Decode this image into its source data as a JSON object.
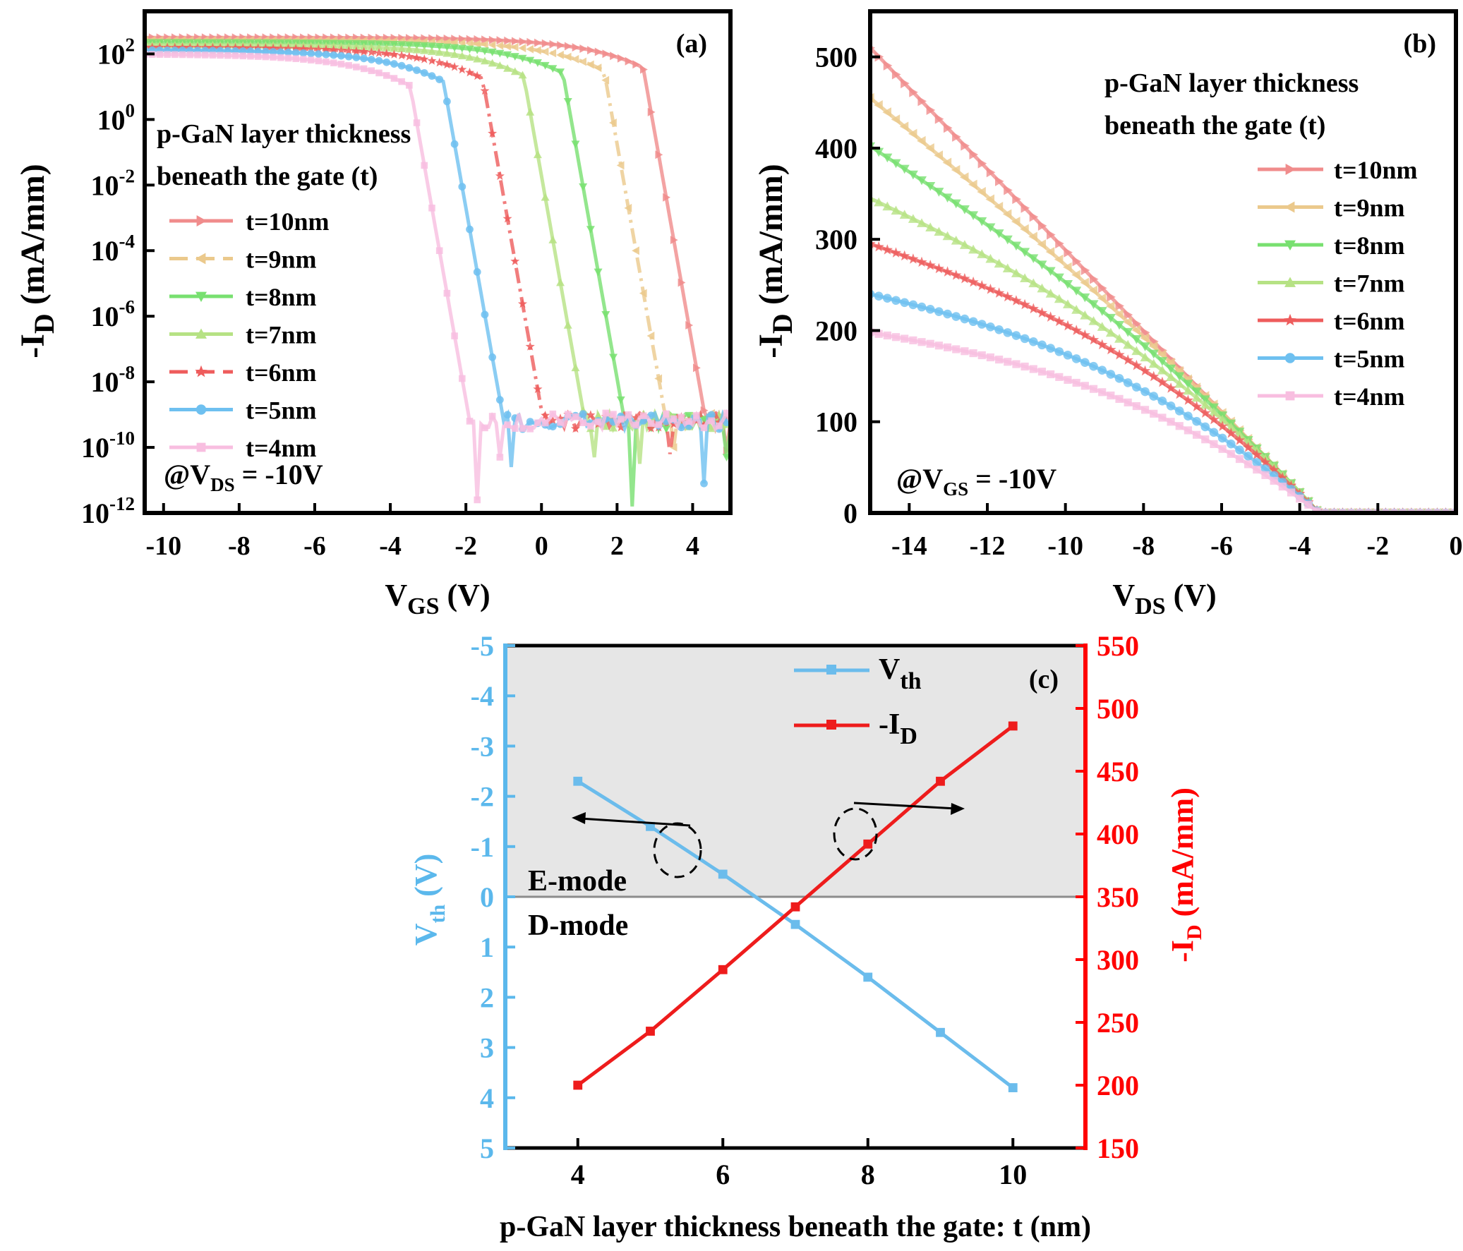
{
  "chart_data": [
    {
      "panel": "(a)",
      "type": "line",
      "yscale": "log",
      "title": "",
      "xlabel_main": "V",
      "xlabel_sub": "GS",
      "xlabel_unit": " (V)",
      "ylabel_main": "-I",
      "ylabel_sub": "D",
      "ylabel_unit": " (mA/mm)",
      "xlim": [
        -10.5,
        5
      ],
      "ylim_exp": [
        -12,
        3.3
      ],
      "xticks": [
        "-10",
        "-8",
        "-6",
        "-4",
        "-2",
        "0",
        "2",
        "4"
      ],
      "xtick_values": [
        -10,
        -8,
        -6,
        -4,
        -2,
        0,
        2,
        4
      ],
      "ytick_exps": [
        "2",
        "0",
        "-2",
        "-4",
        "-6",
        "-8",
        "-10",
        "-12"
      ],
      "ytick_base": "10",
      "legend_title_line1": "p-GaN layer thickness",
      "legend_title_line2": "beneath the gate (t)",
      "condition_prefix": "@V",
      "condition_sub": "DS",
      "condition_value": " = -10V",
      "floor_log": -9.2,
      "series": [
        {
          "name": "t=10nm",
          "color": "#F08C8C",
          "marker": "tri-right",
          "vth": 4.35,
          "on_log": 2.5,
          "dash": false,
          "noise_dips": [
            [
              4.9,
              -10.1
            ]
          ]
        },
        {
          "name": "t=9nm",
          "color": "#EBC98C",
          "marker": "tri-left",
          "vth": 3.3,
          "on_log": 2.42,
          "dash": true,
          "noise_dips": [
            [
              3.5,
              -10.0
            ]
          ]
        },
        {
          "name": "t=8nm",
          "color": "#78E070",
          "marker": "tri-down",
          "vth": 2.2,
          "on_log": 2.35,
          "dash": false,
          "noise_dips": [
            [
              2.4,
              -11.8
            ],
            [
              4.9,
              -10.3
            ]
          ]
        },
        {
          "name": "t=7nm",
          "color": "#B6E284",
          "marker": "tri-up",
          "vth": 1.15,
          "on_log": 2.28,
          "dash": false,
          "noise_dips": [
            [
              1.4,
              -10.3
            ],
            [
              2.6,
              -10.5
            ]
          ]
        },
        {
          "name": "t=6nm",
          "color": "#EE5C5C",
          "marker": "star",
          "vth": 0.05,
          "on_log": 2.2,
          "dash": true,
          "noise_dips": [
            [
              3.4,
              -10.2
            ]
          ]
        },
        {
          "name": "t=5nm",
          "color": "#6EC0F0",
          "marker": "circle",
          "vth": -1.0,
          "on_log": 2.12,
          "dash": false,
          "noise_dips": [
            [
              -0.8,
              -10.6
            ],
            [
              4.3,
              -11.1
            ]
          ]
        },
        {
          "name": "t=4nm",
          "color": "#F8BEE0",
          "marker": "square",
          "vth": -1.9,
          "on_log": 2.0,
          "dash": false,
          "noise_dips": [
            [
              -1.7,
              -11.6
            ],
            [
              -1.1,
              -10.3
            ]
          ]
        }
      ]
    },
    {
      "panel": "(b)",
      "type": "line",
      "title": "",
      "xlabel_main": "V",
      "xlabel_sub": "DS",
      "xlabel_unit": " (V)",
      "ylabel_main": "-I",
      "ylabel_sub": "D",
      "ylabel_unit": " (mA/mm)",
      "xlim": [
        -15,
        0
      ],
      "ylim": [
        0,
        550
      ],
      "xticks": [
        "-14",
        "-12",
        "-10",
        "-8",
        "-6",
        "-4",
        "-2",
        "0"
      ],
      "xtick_values": [
        -14,
        -12,
        -10,
        -8,
        -6,
        -4,
        -2,
        0
      ],
      "yticks": [
        "0",
        "100",
        "200",
        "300",
        "400",
        "500"
      ],
      "ytick_values": [
        0,
        100,
        200,
        300,
        400,
        500
      ],
      "legend_title_line1": "p-GaN layer thickness",
      "legend_title_line2": "beneath the gate (t)",
      "condition_prefix": "@V",
      "condition_sub": "GS",
      "condition_value": " = -10V",
      "knee_vds": -3.5,
      "series": [
        {
          "name": "t=10nm",
          "color": "#F08C8C",
          "marker": "tri-right",
          "i_start": 510,
          "flat": 0.0
        },
        {
          "name": "t=9nm",
          "color": "#EBC98C",
          "marker": "tri-left",
          "i_start": 455,
          "flat": 0.1
        },
        {
          "name": "t=8nm",
          "color": "#78E070",
          "marker": "tri-down",
          "i_start": 402,
          "flat": 0.2
        },
        {
          "name": "t=7nm",
          "color": "#B6E284",
          "marker": "tri-up",
          "i_start": 345,
          "flat": 0.32
        },
        {
          "name": "t=6nm",
          "color": "#EE5C5C",
          "marker": "star",
          "i_start": 295,
          "flat": 0.42
        },
        {
          "name": "t=5nm",
          "color": "#6EC0F0",
          "marker": "circle",
          "i_start": 240,
          "flat": 0.5
        },
        {
          "name": "t=4nm",
          "color": "#F8BEE0",
          "marker": "square",
          "i_start": 198,
          "flat": 0.55
        }
      ]
    },
    {
      "panel": "(c)",
      "type": "line",
      "title": "",
      "xlabel": "p-GaN layer thickness beneath the gate: t (nm)",
      "x": [
        4,
        5,
        6,
        7,
        8,
        9,
        10
      ],
      "xlim": [
        3,
        11
      ],
      "xticks": [
        "4",
        "6",
        "8",
        "10"
      ],
      "xtick_values": [
        4,
        6,
        8,
        10
      ],
      "left_axis": {
        "label_main": "V",
        "label_sub": "th",
        "label_unit": " (V)",
        "ylim": [
          5,
          -5
        ],
        "ticks": [
          "-5",
          "-4",
          "-3",
          "-2",
          "-1",
          "0",
          "1",
          "2",
          "3",
          "4",
          "5"
        ],
        "tick_values": [
          -5,
          -4,
          -3,
          -2,
          -1,
          0,
          1,
          2,
          3,
          4,
          5
        ],
        "color": "#5BB8EC"
      },
      "right_axis": {
        "label_main": "-I",
        "label_sub": "D",
        "label_unit": " (mA/mm)",
        "ylim": [
          150,
          550
        ],
        "ticks": [
          "150",
          "200",
          "250",
          "300",
          "350",
          "400",
          "450",
          "500",
          "550"
        ],
        "tick_values": [
          150,
          200,
          250,
          300,
          350,
          400,
          450,
          500,
          550
        ],
        "color": "#FF0000"
      },
      "series": [
        {
          "name_main": "V",
          "name_sub": "th",
          "axis": "left",
          "color": "#6BBCEC",
          "values": [
            -2.3,
            -1.4,
            -0.45,
            0.55,
            1.6,
            2.7,
            3.8
          ]
        },
        {
          "name_main": "-I",
          "name_sub": "D",
          "axis": "right",
          "color": "#EE1C1C",
          "values": [
            200,
            243,
            292,
            342,
            392,
            442,
            486
          ]
        }
      ],
      "region_upper_label": "E-mode",
      "region_lower_label": "D-mode"
    }
  ]
}
